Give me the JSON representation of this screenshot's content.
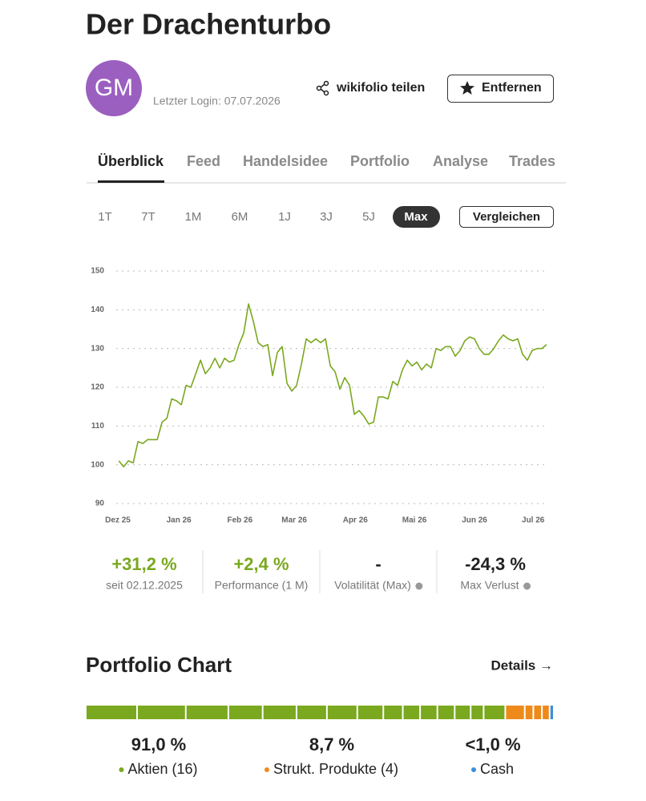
{
  "header": {
    "title": "Der Drachenturbo",
    "initials": "GM",
    "last_login": "Letzter Login: 07.07.2026",
    "share": "wikifolio teilen",
    "remove": "Entfernen"
  },
  "tabs": [
    "Überblick",
    "Feed",
    "Handelsidee",
    "Portfolio",
    "Analyse",
    "Trades"
  ],
  "periods": {
    "options": [
      "1T",
      "7T",
      "1M",
      "6M",
      "1J",
      "3J",
      "5J",
      "Max"
    ],
    "compare": "Vergleichen"
  },
  "chart_data": {
    "type": "line",
    "color": "#7aa81e",
    "grid": true,
    "values": [
      101,
      99.5,
      101,
      100.5,
      106,
      105.5,
      106.5,
      106.5,
      106.5,
      111,
      112,
      117,
      116.5,
      115.5,
      120.5,
      120,
      123.5,
      127,
      123.5,
      125,
      127.5,
      125,
      127.5,
      126.5,
      127,
      131,
      134,
      141.5,
      137,
      131.5,
      130.5,
      131,
      123,
      129,
      130.5,
      121,
      119,
      120.5,
      126,
      132.5,
      131.5,
      132.5,
      131.5,
      132.5,
      125.5,
      124,
      119.5,
      122.5,
      120.5,
      113,
      114,
      112.5,
      110.5,
      111,
      117.5,
      117.5,
      117,
      121.5,
      120.5,
      124.5,
      127,
      125.5,
      126.5,
      124.5,
      126,
      125,
      130,
      129.5,
      130.5,
      130.5,
      128,
      129.5,
      132,
      133,
      132.5,
      130,
      128.5,
      128.5,
      130,
      132,
      133.5,
      132.5,
      132,
      132.5,
      128.5,
      127,
      129.5,
      130,
      130,
      131
    ],
    "ylim": [
      90,
      150
    ],
    "yticks": [
      90,
      100,
      110,
      120,
      130,
      140,
      150
    ],
    "xlim": [
      -0.2,
      89
    ],
    "xticks": [
      {
        "value": -0.2,
        "label": "Dez 25"
      },
      {
        "value": 12.5,
        "label": "Jan 26"
      },
      {
        "value": 25.2,
        "label": "Feb 26"
      },
      {
        "value": 36.5,
        "label": "Mar 26"
      },
      {
        "value": 49.2,
        "label": "Apr 26"
      },
      {
        "value": 61.5,
        "label": "Mai 26"
      },
      {
        "value": 74,
        "label": "Jun 26"
      },
      {
        "value": 86.2,
        "label": "Jul 26"
      }
    ]
  },
  "stats": [
    {
      "value": "+31,2 %",
      "label": "seit 02.12.2025",
      "color": "#7aa81e"
    },
    {
      "value": "+2,4 %",
      "label": "Performance (1 M)",
      "color": "#7aa81e"
    },
    {
      "value": "-",
      "label": "Volatilität (Max)",
      "color": "#222",
      "info": true
    },
    {
      "value": "-24,3 %",
      "label": "Max Verlust",
      "color": "#222",
      "info": true
    }
  ],
  "portfolio_chart": {
    "title": "Portfolio Chart",
    "details": "Details →",
    "segments": [
      {
        "value": 11.4,
        "color": "#7aa81e"
      },
      {
        "value": 10.8,
        "color": "#7aa81e"
      },
      {
        "value": 9.4,
        "color": "#7aa81e"
      },
      {
        "value": 7.5,
        "color": "#7aa81e"
      },
      {
        "value": 7.4,
        "color": "#7aa81e"
      },
      {
        "value": 6.6,
        "color": "#7aa81e"
      },
      {
        "value": 6.6,
        "color": "#7aa81e"
      },
      {
        "value": 5.6,
        "color": "#7aa81e"
      },
      {
        "value": 4.1,
        "color": "#7aa81e"
      },
      {
        "value": 3.6,
        "color": "#7aa81e"
      },
      {
        "value": 3.6,
        "color": "#7aa81e"
      },
      {
        "value": 3.6,
        "color": "#7aa81e"
      },
      {
        "value": 3.3,
        "color": "#7aa81e"
      },
      {
        "value": 2.6,
        "color": "#7aa81e"
      },
      {
        "value": 4.6,
        "color": "#7aa81e"
      },
      {
        "value": 4.1,
        "color": "#ee8a1a"
      },
      {
        "value": 1.6,
        "color": "#ee8a1a"
      },
      {
        "value": 1.6,
        "color": "#ee8a1a"
      },
      {
        "value": 1.4,
        "color": "#ee8a1a"
      },
      {
        "value": 0.6,
        "color": "#3b8fd9"
      }
    ],
    "legend": [
      {
        "value": "91,0 %",
        "label": "Aktien (16)",
        "color": "#7aa81e"
      },
      {
        "value": "8,7 %",
        "label": "Strukt. Produkte (4)",
        "color": "#ee8a1a"
      },
      {
        "value": "<1,0 %",
        "label": "Cash",
        "color": "#3b8fd9"
      }
    ]
  }
}
